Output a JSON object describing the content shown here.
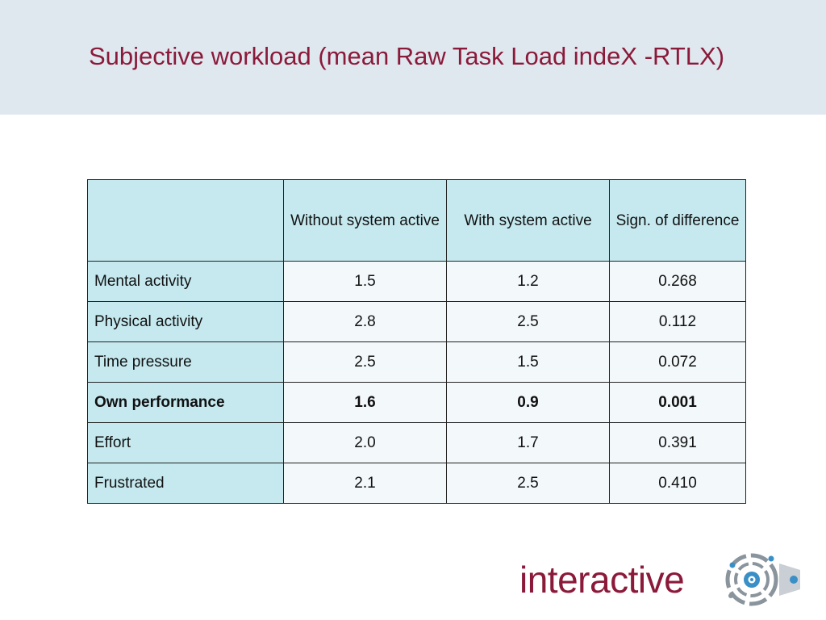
{
  "slide": {
    "title": "Subjective workload (mean Raw Task Load indeX -RTLX)"
  },
  "table": {
    "headers": [
      "",
      "Without system active",
      "With system active",
      "Sign. of difference"
    ],
    "rows": [
      {
        "label": "Mental activity",
        "without": "1.5",
        "with": "1.2",
        "sign": "0.268",
        "bold": false
      },
      {
        "label": "Physical activity",
        "without": "2.8",
        "with": "2.5",
        "sign": "0.112",
        "bold": false
      },
      {
        "label": "Time pressure",
        "without": "2.5",
        "with": "1.5",
        "sign": "0.072",
        "bold": false
      },
      {
        "label": "Own performance",
        "without": "1.6",
        "with": "0.9",
        "sign": "0.001",
        "bold": true
      },
      {
        "label": "Effort",
        "without": "2.0",
        "with": "1.7",
        "sign": "0.391",
        "bold": false
      },
      {
        "label": "Frustrated",
        "without": "2.1",
        "with": "2.5",
        "sign": "0.410",
        "bold": false
      }
    ]
  },
  "logo": {
    "text": "interactive"
  },
  "colors": {
    "title": "#8b1a3a",
    "header_band": "#dfe8ef",
    "header_cells": "#c5e9ef",
    "data_cells": "#f3f8fb",
    "logo_text": "#8b1a3a",
    "logo_mark_grey": "#8a949c",
    "logo_mark_blue": "#3a8fc7"
  }
}
